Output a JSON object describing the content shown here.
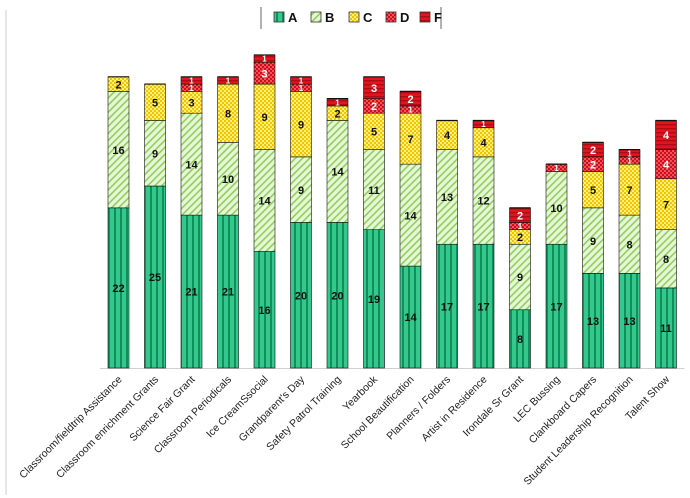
{
  "chart_data": {
    "type": "bar",
    "stacked": true,
    "title": "",
    "xlabel": "",
    "ylabel": "",
    "grid": false,
    "legend_position": "top-center",
    "categories": [
      "Classroom/fieldtrip Assistance",
      "Classroom enrichment Grants",
      "Science Fair Grant",
      "Classroom Periodicals",
      "Ice CreamSsocial",
      "Grandparent's Day",
      "Safety Patrol Training",
      "Yearbook",
      "School Beautification",
      "Planners / Folders",
      "Artist in Residence",
      "Irondale Sr Grant",
      "LEC Bussing",
      "Clankboard Capers",
      "Student Leadership Recognition",
      "Talent Show"
    ],
    "series": [
      {
        "name": "A",
        "color": "#2bbf7f",
        "values": [
          22,
          25,
          21,
          21,
          16,
          20,
          20,
          19,
          14,
          17,
          17,
          8,
          17,
          13,
          13,
          11
        ]
      },
      {
        "name": "B",
        "color": "#9dd66a",
        "values": [
          16,
          9,
          14,
          10,
          14,
          9,
          14,
          11,
          14,
          13,
          12,
          9,
          10,
          9,
          8,
          8
        ]
      },
      {
        "name": "C",
        "color": "#ffe23a",
        "values": [
          2,
          5,
          3,
          8,
          9,
          9,
          2,
          5,
          7,
          4,
          4,
          2,
          0,
          5,
          7,
          7
        ]
      },
      {
        "name": "D",
        "color": "#e8202a",
        "values": [
          0,
          0,
          1,
          0,
          3,
          1,
          0,
          2,
          1,
          0,
          0,
          1,
          1,
          2,
          1,
          4
        ]
      },
      {
        "name": "F",
        "color": "#e8202a",
        "values": [
          0,
          0,
          1,
          1,
          1,
          1,
          1,
          3,
          2,
          0,
          1,
          2,
          0,
          2,
          1,
          4
        ]
      }
    ],
    "ylim": [
      0,
      45
    ]
  }
}
